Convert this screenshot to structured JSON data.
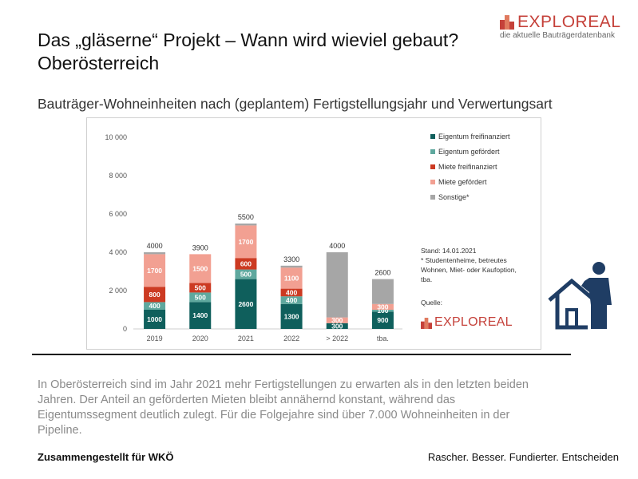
{
  "header": {
    "title_line1": "Das „gläserne“ Projekt – Wann wird wieviel gebaut?",
    "title_line2": "Oberösterreich",
    "logo_word": "EXPLOREAL",
    "logo_tagline": "die aktuelle Bauträgerdatenbank",
    "logo_color": "#c5413a"
  },
  "subtitle": "Bauträger-Wohneinheiten nach (geplantem) Fertigstellungsjahr und Verwertungsart",
  "chart_data": {
    "type": "bar",
    "stacked": true,
    "title": "",
    "xlabel": "",
    "ylabel": "",
    "ylim": [
      0,
      10000
    ],
    "yticks": [
      0,
      2000,
      4000,
      6000,
      8000,
      10000
    ],
    "ytick_labels": [
      "0",
      "2 000",
      "4 000",
      "6 000",
      "8 000",
      "10 000"
    ],
    "grid": false,
    "legend_position": "right",
    "categories": [
      "2019",
      "2020",
      "2021",
      "2022",
      "> 2022",
      "tba."
    ],
    "totals": [
      4000,
      3900,
      5500,
      3300,
      4000,
      2600
    ],
    "total_labels": [
      "4000",
      "3900",
      "5500",
      "3300",
      "4000",
      "2600"
    ],
    "series": [
      {
        "name": "Eigentum freifinanziert",
        "color": "#0f5f5c",
        "values": [
          1000,
          1400,
          2600,
          1300,
          300,
          900
        ],
        "labels": [
          "1000",
          "1400",
          "2600",
          "1300",
          "300",
          "900"
        ]
      },
      {
        "name": "Eigentum gefördert",
        "color": "#5fa89e",
        "values": [
          400,
          500,
          500,
          400,
          0,
          100
        ],
        "labels": [
          "400",
          "500",
          "500",
          "400",
          "",
          "100"
        ]
      },
      {
        "name": "Miete freifinanziert",
        "color": "#cc3a22",
        "values": [
          800,
          500,
          600,
          400,
          0,
          0
        ],
        "labels": [
          "800",
          "500",
          "600",
          "400",
          "",
          ""
        ]
      },
      {
        "name": "Miete gefördert",
        "color": "#f2a092",
        "values": [
          1700,
          1500,
          1700,
          1100,
          300,
          300
        ],
        "labels": [
          "1700",
          "1500",
          "1700",
          "1100",
          "300",
          "300"
        ]
      },
      {
        "name": "Sonstige*",
        "color": "#a6a6a6",
        "values": [
          100,
          0,
          100,
          100,
          3400,
          1300
        ],
        "labels": [
          "",
          "",
          "",
          "",
          "",
          ""
        ]
      }
    ]
  },
  "chart_notes": {
    "stand": "Stand: 14.01.2021",
    "footnote_line1": "* Studentenheime, betreutes",
    "footnote_line2": "Wohnen, Miet- oder Kaufoption,",
    "footnote_line3": "tba.",
    "quelle": "Quelle:",
    "quelle_logo": "EXPLOREAL"
  },
  "body": {
    "line1": "In Oberösterreich sind im Jahr 2021 mehr Fertigstellungen zu erwarten als in den letzten beiden",
    "line2": "Jahren. Der Anteil an geförderten Mieten bleibt annähernd konstant, während das",
    "line3": "Eigentumssegment deutlich zulegt. Für die Folgejahre sind über 7.000 Wohneinheiten in der",
    "line4": "Pipeline."
  },
  "footer": {
    "left": "Zusammengestellt für WKÖ",
    "right": "Rascher. Besser. Fundierter. Entscheiden"
  },
  "icons": {
    "logo_icon": "building-blocks-icon",
    "illustration": "person-with-house-icon",
    "illustration_color": "#1f3d64"
  }
}
